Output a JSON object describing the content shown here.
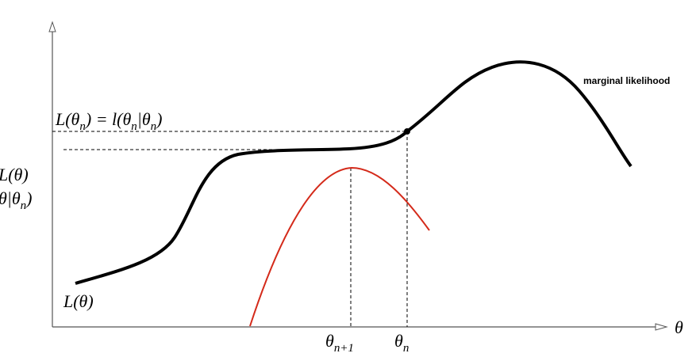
{
  "labels": {
    "top": [
      "L(θ",
      "n",
      ") = l(θ",
      "n",
      "|θ",
      "n",
      ")"
    ],
    "axis_y_1": [
      "L(θ)"
    ],
    "axis_y_2": [
      "θ|θ",
      "n",
      ")"
    ],
    "curve": [
      "L(θ)"
    ],
    "theta_next": [
      "θ",
      "n+1"
    ],
    "theta_n": [
      "θ",
      "n"
    ],
    "axis_x": [
      "θ"
    ]
  },
  "note": "marginal likelihood"
}
